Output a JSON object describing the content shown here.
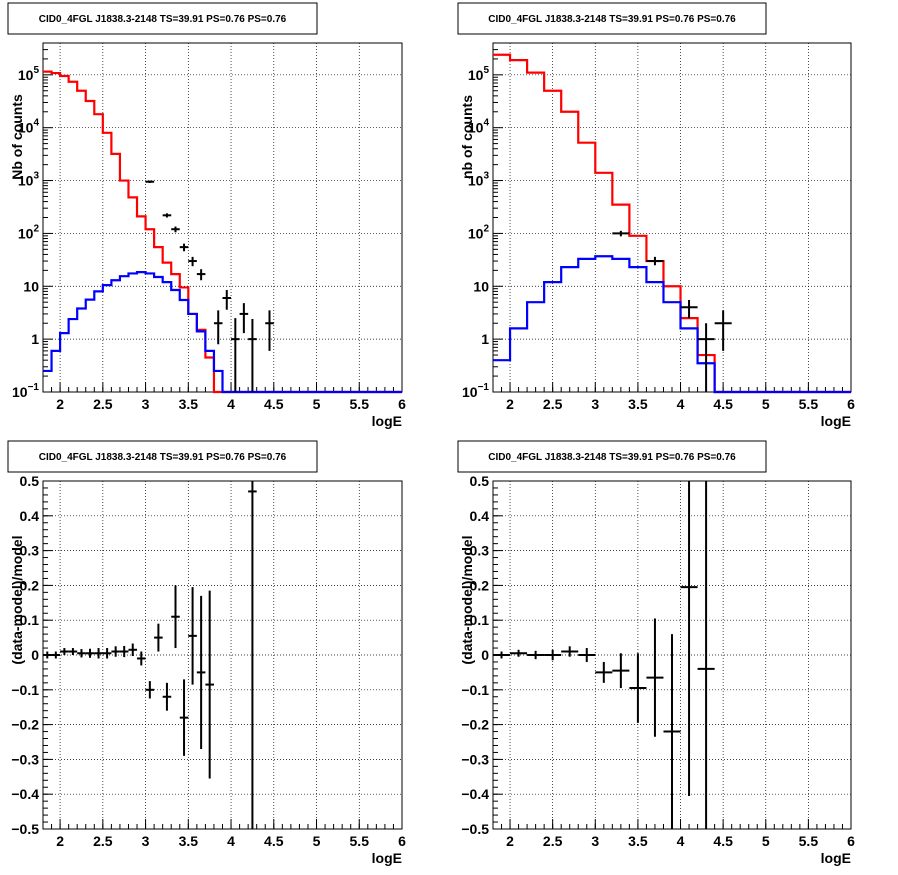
{
  "chart_data": [
    {
      "type": "histogram",
      "title": "CID0_4FGL J1838.3-2148 TS=39.91 PS=0.76 PS=0.76",
      "xlabel": "logE",
      "ylabel": "Nb of counts",
      "xlim": [
        1.8,
        6.0
      ],
      "ylim": [
        0.1,
        400000
      ],
      "yscale": "log",
      "grid": true,
      "x_ticks": [
        "2",
        "2.5",
        "3",
        "3.5",
        "4",
        "4.5",
        "5",
        "5.5",
        "6"
      ],
      "bin_width": 0.1,
      "series": [
        {
          "color": "#ff0000",
          "style": "step",
          "values": [
            115000,
            108000,
            95000,
            74000,
            50000,
            32000,
            18000,
            8000,
            3200,
            1000,
            480,
            210,
            120,
            55,
            28,
            17,
            9.5,
            3,
            1.5,
            0.45,
            0.1,
            0.1,
            0.1,
            0.1,
            0.1,
            0.1,
            0.1,
            0.1,
            0.1,
            0.1,
            0.1,
            0.1,
            0.1,
            0.1,
            0.1,
            0.1,
            0.1,
            0.1,
            0.1,
            0.1,
            0.1,
            0.1
          ]
        },
        {
          "color": "#0000ff",
          "style": "step",
          "values": [
            0.25,
            0.6,
            1.3,
            2.4,
            3.8,
            5.6,
            8,
            10.5,
            13,
            15.5,
            17.5,
            18.5,
            17.5,
            15,
            12,
            8.5,
            5.5,
            3,
            1.4,
            0.6,
            0.25,
            0.1,
            0.1,
            0.1,
            0.1,
            0.1,
            0.1,
            0.1,
            0.1,
            0.1,
            0.1,
            0.1,
            0.1,
            0.1,
            0.1,
            0.1,
            0.1,
            0.1,
            0.1,
            0.1,
            0.1,
            0.1
          ]
        },
        {
          "color": "#000000",
          "style": "errorbar",
          "points": [
            {
              "x": 3.05,
              "y": 950,
              "ylo": 900,
              "yhi": 1000
            },
            {
              "x": 3.25,
              "y": 220,
              "ylo": 200,
              "yhi": 240
            },
            {
              "x": 3.35,
              "y": 120,
              "ylo": 105,
              "yhi": 135
            },
            {
              "x": 3.45,
              "y": 55,
              "ylo": 46,
              "yhi": 64
            },
            {
              "x": 3.55,
              "y": 30,
              "ylo": 24,
              "yhi": 36
            },
            {
              "x": 3.65,
              "y": 17,
              "ylo": 13,
              "yhi": 21
            },
            {
              "x": 3.85,
              "y": 2,
              "ylo": 0.8,
              "yhi": 3.5
            },
            {
              "x": 3.95,
              "y": 6,
              "ylo": 3.6,
              "yhi": 8.5
            },
            {
              "x": 4.05,
              "y": 1,
              "ylo": 0.1,
              "yhi": 2.5
            },
            {
              "x": 4.15,
              "y": 3,
              "ylo": 1.3,
              "yhi": 4.8
            },
            {
              "x": 4.25,
              "y": 1,
              "ylo": 0.1,
              "yhi": 2.4
            },
            {
              "x": 4.45,
              "y": 2,
              "ylo": 0.6,
              "yhi": 3.5
            }
          ]
        }
      ]
    },
    {
      "type": "histogram",
      "title": "CID0_4FGL J1838.3-2148 TS=39.91 PS=0.76 PS=0.76",
      "xlabel": "logE",
      "ylabel": "nb of counts",
      "xlim": [
        1.8,
        6.0
      ],
      "ylim": [
        0.1,
        400000
      ],
      "yscale": "log",
      "grid": true,
      "x_ticks": [
        "2",
        "2.5",
        "3",
        "3.5",
        "4",
        "4.5",
        "5",
        "5.5",
        "6"
      ],
      "bin_width": 0.2,
      "series": [
        {
          "color": "#ff0000",
          "style": "step",
          "values": [
            240000,
            190000,
            110000,
            50000,
            20000,
            5200,
            1400,
            350,
            90,
            30,
            10,
            2.5,
            0.5,
            0.1,
            0.1,
            0.1,
            0.1,
            0.1,
            0.1,
            0.1,
            0.1
          ]
        },
        {
          "color": "#0000ff",
          "style": "step",
          "values": [
            0.4,
            1.6,
            5,
            12,
            23,
            33,
            37,
            33,
            23,
            12,
            5,
            1.6,
            0.35,
            0.1,
            0.1,
            0.1,
            0.1,
            0.1,
            0.1,
            0.1,
            0.1
          ]
        },
        {
          "color": "#000000",
          "style": "errorbar",
          "points": [
            {
              "x": 3.3,
              "y": 100,
              "ylo": 88,
              "yhi": 112
            },
            {
              "x": 3.7,
              "y": 30,
              "ylo": 25,
              "yhi": 36
            },
            {
              "x": 4.1,
              "y": 4,
              "ylo": 2.5,
              "yhi": 5.5
            },
            {
              "x": 4.3,
              "y": 1,
              "ylo": 0.1,
              "yhi": 2
            },
            {
              "x": 4.5,
              "y": 2,
              "ylo": 0.6,
              "yhi": 3.5
            }
          ]
        }
      ]
    },
    {
      "type": "scatter",
      "title": "CID0_4FGL J1838.3-2148 TS=39.91 PS=0.76 PS=0.76",
      "xlabel": "logE",
      "ylabel": "(data-model)/model",
      "xlim": [
        1.8,
        6.0
      ],
      "ylim": [
        -0.5,
        0.5
      ],
      "grid": true,
      "x_ticks": [
        "2",
        "2.5",
        "3",
        "3.5",
        "4",
        "4.5",
        "5",
        "5.5",
        "6"
      ],
      "y_ticks": [
        "-0.5",
        "-0.4",
        "-0.3",
        "-0.2",
        "-0.1",
        "0",
        "0.1",
        "0.2",
        "0.3",
        "0.4",
        "0.5"
      ],
      "series": [
        {
          "color": "#000000",
          "style": "errorbar",
          "xerr": 0.05,
          "points": [
            {
              "x": 1.85,
              "y": 0.0,
              "err": 0.01
            },
            {
              "x": 1.95,
              "y": 0.0,
              "err": 0.01
            },
            {
              "x": 2.05,
              "y": 0.01,
              "err": 0.01
            },
            {
              "x": 2.15,
              "y": 0.01,
              "err": 0.01
            },
            {
              "x": 2.25,
              "y": 0.005,
              "err": 0.012
            },
            {
              "x": 2.35,
              "y": 0.005,
              "err": 0.013
            },
            {
              "x": 2.45,
              "y": 0.005,
              "err": 0.015
            },
            {
              "x": 2.55,
              "y": 0.005,
              "err": 0.015
            },
            {
              "x": 2.65,
              "y": 0.01,
              "err": 0.015
            },
            {
              "x": 2.75,
              "y": 0.01,
              "err": 0.016
            },
            {
              "x": 2.85,
              "y": 0.015,
              "err": 0.018
            },
            {
              "x": 2.95,
              "y": -0.01,
              "err": 0.02
            },
            {
              "x": 3.05,
              "y": -0.1,
              "err": 0.025
            },
            {
              "x": 3.15,
              "y": 0.05,
              "err": 0.04
            },
            {
              "x": 3.25,
              "y": -0.12,
              "err": 0.04
            },
            {
              "x": 3.35,
              "y": 0.11,
              "err": 0.09
            },
            {
              "x": 3.45,
              "y": -0.18,
              "err": 0.11
            },
            {
              "x": 3.55,
              "y": 0.055,
              "err": 0.14
            },
            {
              "x": 3.65,
              "y": -0.05,
              "err": 0.22
            },
            {
              "x": 3.75,
              "y": -0.085,
              "err": 0.27
            },
            {
              "x": 4.25,
              "y": 0.47,
              "err": 1.0
            }
          ]
        }
      ]
    },
    {
      "type": "scatter",
      "title": "CID0_4FGL J1838.3-2148 TS=39.91 PS=0.76 PS=0.76",
      "xlabel": "logE",
      "ylabel": "(data-model)/model",
      "xlim": [
        1.8,
        6.0
      ],
      "ylim": [
        -0.5,
        0.5
      ],
      "grid": true,
      "x_ticks": [
        "2",
        "2.5",
        "3",
        "3.5",
        "4",
        "4.5",
        "5",
        "5.5",
        "6"
      ],
      "y_ticks": [
        "-0.5",
        "-0.4",
        "-0.3",
        "-0.2",
        "-0.1",
        "0",
        "0.1",
        "0.2",
        "0.3",
        "0.4",
        "0.5"
      ],
      "series": [
        {
          "color": "#000000",
          "style": "errorbar",
          "xerr": 0.1,
          "points": [
            {
              "x": 1.9,
              "y": 0.0,
              "err": 0.01
            },
            {
              "x": 2.1,
              "y": 0.005,
              "err": 0.01
            },
            {
              "x": 2.3,
              "y": 0.0,
              "err": 0.012
            },
            {
              "x": 2.5,
              "y": 0.0,
              "err": 0.015
            },
            {
              "x": 2.7,
              "y": 0.01,
              "err": 0.015
            },
            {
              "x": 2.9,
              "y": 0.0,
              "err": 0.02
            },
            {
              "x": 3.1,
              "y": -0.05,
              "err": 0.03
            },
            {
              "x": 3.3,
              "y": -0.045,
              "err": 0.05
            },
            {
              "x": 3.5,
              "y": -0.095,
              "err": 0.1
            },
            {
              "x": 3.7,
              "y": -0.065,
              "err": 0.17
            },
            {
              "x": 3.9,
              "y": -0.22,
              "err": 0.28
            },
            {
              "x": 4.1,
              "y": 0.195,
              "err": 0.6
            },
            {
              "x": 4.3,
              "y": -0.04,
              "err": 1.0
            }
          ]
        }
      ]
    }
  ]
}
